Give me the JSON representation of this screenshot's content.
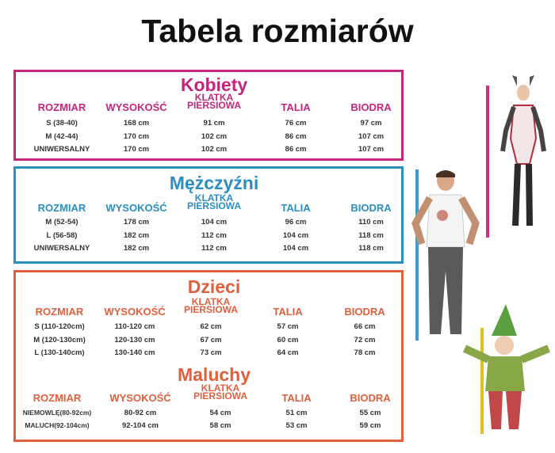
{
  "title": "Tabela rozmiarów",
  "colors": {
    "kobiety": "#c2277c",
    "mezczyzni": "#2a8ec2",
    "dzieci": "#e0603e",
    "title": "#111111"
  },
  "headers": [
    "ROZMIAR",
    "WYSOKOŚĆ",
    "KLATKA PIERSIOWA",
    "TALIA",
    "BIODRA"
  ],
  "sections": [
    {
      "name": "Kobiety",
      "rows": [
        [
          "S (38-40)",
          "168 cm",
          "91 cm",
          "76 cm",
          "97 cm"
        ],
        [
          "M (42-44)",
          "170 cm",
          "102 cm",
          "86 cm",
          "107 cm"
        ],
        [
          "UNIWERSALNY",
          "170 cm",
          "102 cm",
          "86 cm",
          "107 cm"
        ]
      ]
    },
    {
      "name": "Mężczyźni",
      "rows": [
        [
          "M (52-54)",
          "178 cm",
          "104 cm",
          "96 cm",
          "110 cm"
        ],
        [
          "L (56-58)",
          "182 cm",
          "112 cm",
          "104 cm",
          "118 cm"
        ],
        [
          "UNIWERSALNY",
          "182 cm",
          "112 cm",
          "104 cm",
          "118 cm"
        ]
      ]
    },
    {
      "name": "Dzieci",
      "rows": [
        [
          "S (110-120cm)",
          "110-120 cm",
          "62 cm",
          "57 cm",
          "66 cm"
        ],
        [
          "M (120-130cm)",
          "120-130 cm",
          "67 cm",
          "60 cm",
          "72 cm"
        ],
        [
          "L  (130-140cm)",
          "130-140 cm",
          "73 cm",
          "64 cm",
          "78 cm"
        ]
      ]
    },
    {
      "name": "Maluchy",
      "rows": [
        [
          "NIEMOWLĘ(80-92cm)",
          "80-92 cm",
          "54 cm",
          "51 cm",
          "55 cm"
        ],
        [
          "MALUCH(92-104cm)",
          "92-104 cm",
          "58 cm",
          "53 cm",
          "59 cm"
        ]
      ]
    }
  ]
}
